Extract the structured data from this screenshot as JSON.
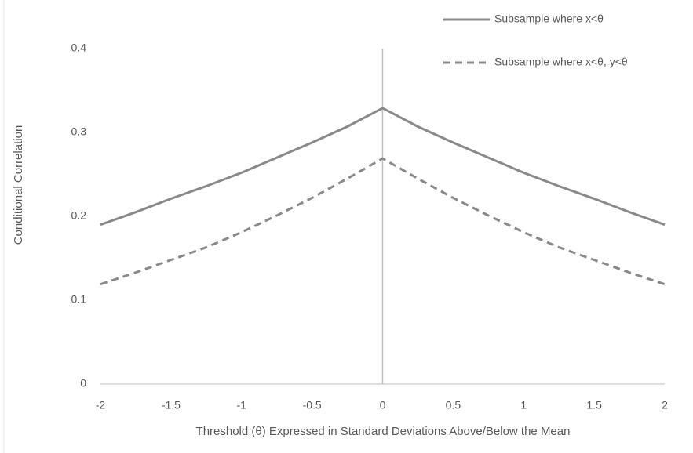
{
  "chart_data": {
    "type": "line",
    "x": [
      -2,
      -1.75,
      -1.5,
      -1.25,
      -1,
      -0.75,
      -0.5,
      -0.25,
      0,
      0.25,
      0.5,
      0.75,
      1,
      1.25,
      1.5,
      1.75,
      2
    ],
    "series": [
      {
        "name": "Subsample where x<θ",
        "color": "#898989",
        "dash": false,
        "values": [
          0.19,
          0.205,
          0.221,
          0.236,
          0.252,
          0.27,
          0.288,
          0.307,
          0.329,
          0.307,
          0.288,
          0.27,
          0.252,
          0.236,
          0.221,
          0.205,
          0.19
        ]
      },
      {
        "name": "Subsample where x<θ, y<θ",
        "color": "#898989",
        "dash": true,
        "values": [
          0.119,
          0.133,
          0.148,
          0.163,
          0.181,
          0.201,
          0.222,
          0.245,
          0.269,
          0.245,
          0.222,
          0.201,
          0.181,
          0.163,
          0.148,
          0.133,
          0.119
        ]
      }
    ],
    "x_label": "Threshold (θ) Expressed in Standard Deviations Above/Below the Mean",
    "y_label": "Conditional Correlation",
    "xlim": [
      -2,
      2
    ],
    "xticks": [
      -2,
      -1.5,
      -1,
      -0.5,
      0,
      0.5,
      1,
      1.5,
      2
    ],
    "ylim": [
      0,
      0.4
    ],
    "yticks": [
      0,
      0.1,
      0.2,
      0.3,
      0.4
    ],
    "legend": "top-right"
  }
}
